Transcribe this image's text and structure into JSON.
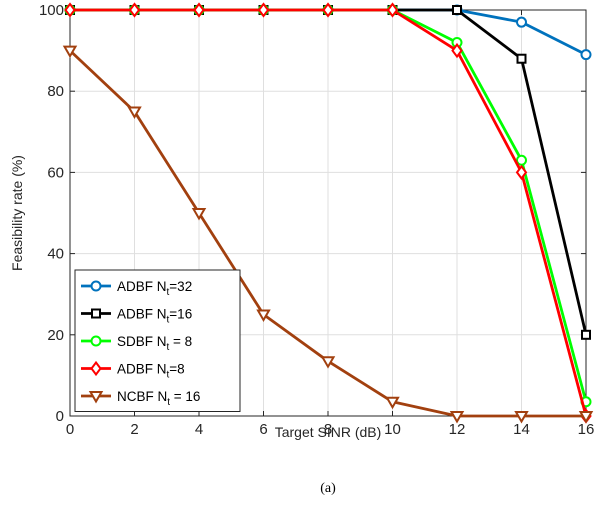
{
  "chart_data": {
    "type": "line",
    "xlabel": "Target SINR (dB)",
    "ylabel": "Feasibility rate (%)",
    "caption": "(a)",
    "xlim": [
      0,
      16
    ],
    "ylim": [
      0,
      100
    ],
    "xticks": [
      "0",
      "2",
      "4",
      "6",
      "8",
      "10",
      "12",
      "14",
      "16"
    ],
    "yticks": [
      "0",
      "20",
      "40",
      "60",
      "80",
      "100"
    ],
    "grid": true,
    "legend_position": "bottom-left",
    "x": [
      0,
      2,
      4,
      6,
      8,
      10,
      12,
      14,
      16
    ],
    "series": [
      {
        "name": "ADBF N",
        "sub": "t",
        "suffix": "=32",
        "color": "#0072BD",
        "marker": "circle",
        "values": [
          100,
          100,
          100,
          100,
          100,
          100,
          100,
          97,
          89
        ]
      },
      {
        "name": "ADBF N",
        "sub": "t",
        "suffix": "=16",
        "color": "#000000",
        "marker": "square",
        "values": [
          100,
          100,
          100,
          100,
          100,
          100,
          100,
          88,
          20
        ]
      },
      {
        "name": "SDBF N",
        "sub": "t",
        "suffix": " = 8",
        "color": "#00FF00",
        "marker": "circle",
        "values": [
          100,
          100,
          100,
          100,
          100,
          100,
          92,
          63,
          3.5
        ]
      },
      {
        "name": "ADBF N",
        "sub": "t",
        "suffix": "=8",
        "color": "#FF0000",
        "marker": "diamond",
        "values": [
          100,
          100,
          100,
          100,
          100,
          100,
          90,
          60,
          0
        ]
      },
      {
        "name": "NCBF N",
        "sub": "t",
        "suffix": " = 16",
        "color": "#A2400F",
        "marker": "triangle-down",
        "values": [
          90,
          75,
          50,
          25,
          13.5,
          3.5,
          0,
          0,
          0
        ]
      }
    ]
  }
}
